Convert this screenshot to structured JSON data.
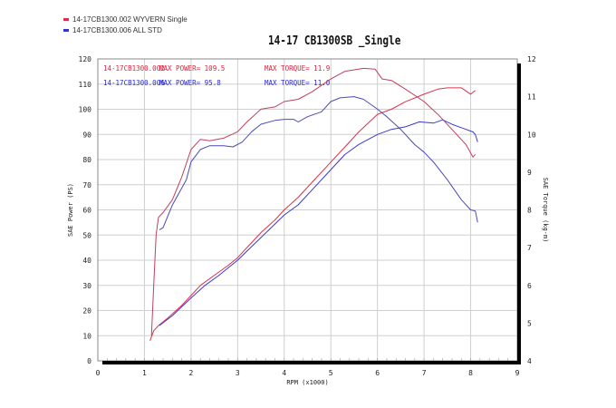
{
  "legend": [
    {
      "label": "14-17CB1300.002  WYVERN Single",
      "color": "#d6314f"
    },
    {
      "label": "14-17CB1300.006  ALL STD",
      "color": "#3535c8"
    }
  ],
  "chart_data": {
    "type": "line",
    "title": "14-17 CB1300SB _Single",
    "xlabel": "RPM (x1000)",
    "ylabel": "SAE Power (PS)",
    "y2label": "SAE Torque (kg-m)",
    "xlim": [
      0,
      9
    ],
    "ylim": [
      0,
      120
    ],
    "y2lim": [
      4,
      12
    ],
    "xticks": [
      0,
      1,
      2,
      3,
      4,
      5,
      6,
      7,
      8,
      9
    ],
    "yticks": [
      0,
      10,
      20,
      30,
      40,
      50,
      60,
      70,
      80,
      90,
      100,
      110,
      120
    ],
    "y2ticks": [
      4,
      5,
      6,
      7,
      8,
      9,
      10,
      11,
      12
    ],
    "grid": true,
    "annotations": [
      {
        "run": "14-17CB1300.002",
        "power": "MAX POWER= 109.5",
        "torque": "MAX TORQUE= 11.9",
        "color": "#e0203c"
      },
      {
        "run": "14-17CB1300.006",
        "power": "MAX POWER= 95.8",
        "torque": "MAX TORQUE= 11.0",
        "color": "#2828d8"
      }
    ],
    "series": [
      {
        "name": "14-17CB1300.002 Power",
        "axis": "left",
        "color": "#e0304a",
        "x": [
          1.12,
          1.2,
          1.3,
          1.5,
          1.8,
          2,
          2.2,
          2.5,
          2.8,
          3,
          3.2,
          3.5,
          3.8,
          4,
          4.3,
          4.6,
          5,
          5.3,
          5.6,
          6,
          6.3,
          6.6,
          7,
          7.3,
          7.5,
          7.8,
          8,
          8.1
        ],
        "y": [
          8,
          12,
          14,
          17,
          22,
          26,
          30,
          34,
          38,
          41,
          45,
          51,
          56,
          60,
          65,
          71,
          79,
          85,
          91,
          98,
          100,
          103,
          106,
          108,
          108.5,
          108.5,
          106,
          107.5
        ]
      },
      {
        "name": "14-17CB1300.006 Power",
        "axis": "left",
        "color": "#3a3ad0",
        "x": [
          1.32,
          1.6,
          2,
          2.3,
          2.6,
          3,
          3.5,
          4,
          4.3,
          4.6,
          5,
          5.3,
          5.6,
          6,
          6.3,
          6.6,
          6.9,
          7.2,
          7.4,
          7.6,
          7.9,
          8.05,
          8.1,
          8.15
        ],
        "y": [
          14,
          18,
          25,
          30,
          34,
          40,
          49,
          58,
          62,
          68,
          76,
          82,
          86,
          90,
          92,
          93,
          95,
          94.5,
          95.8,
          94,
          92,
          91,
          90,
          87
        ]
      },
      {
        "name": "14-17CB1300.002 Torque",
        "axis": "right",
        "color": "#c0405e",
        "x": [
          1.15,
          1.2,
          1.25,
          1.3,
          1.4,
          1.6,
          1.8,
          2,
          2.2,
          2.4,
          2.7,
          3,
          3.2,
          3.5,
          3.8,
          4,
          4.3,
          4.6,
          5,
          5.3,
          5.7,
          5.95,
          6.1,
          6.3,
          6.6,
          7,
          7.3,
          7.6,
          7.9,
          8.05,
          8.1
        ],
        "y": [
          4.67,
          6.0,
          7.33,
          7.8,
          7.93,
          8.27,
          8.87,
          9.6,
          9.87,
          9.83,
          9.9,
          10.07,
          10.33,
          10.67,
          10.73,
          10.87,
          10.93,
          11.13,
          11.47,
          11.67,
          11.75,
          11.73,
          11.47,
          11.43,
          11.2,
          10.87,
          10.53,
          10.13,
          9.73,
          9.4,
          9.47
        ]
      },
      {
        "name": "14-17CB1300.006 Torque",
        "axis": "right",
        "color": "#4a4ab8",
        "x": [
          1.32,
          1.4,
          1.6,
          1.9,
          2,
          2.2,
          2.4,
          2.7,
          2.9,
          3.1,
          3.3,
          3.5,
          3.8,
          4,
          4.2,
          4.3,
          4.5,
          4.8,
          5,
          5.2,
          5.5,
          5.7,
          6,
          6.2,
          6.5,
          6.8,
          7,
          7.2,
          7.5,
          7.8,
          8,
          8.1,
          8.15
        ],
        "y": [
          7.47,
          7.53,
          8.13,
          8.8,
          9.27,
          9.6,
          9.7,
          9.7,
          9.67,
          9.8,
          10.07,
          10.27,
          10.37,
          10.4,
          10.4,
          10.33,
          10.47,
          10.6,
          10.87,
          10.97,
          11.0,
          10.93,
          10.67,
          10.47,
          10.13,
          9.73,
          9.53,
          9.27,
          8.8,
          8.27,
          8.0,
          7.97,
          7.67
        ]
      }
    ]
  }
}
